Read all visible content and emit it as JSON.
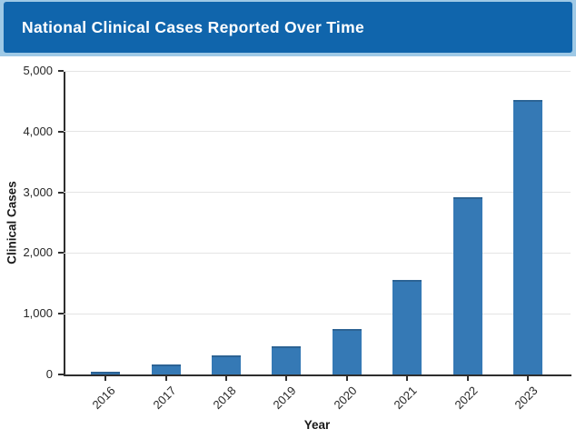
{
  "header": {
    "title": "National Clinical Cases Reported Over Time"
  },
  "colors": {
    "header_bg": "#1065ac",
    "header_border": "#9ec9e6",
    "bar": "#3579b5",
    "grid": "#e4e4e4",
    "spine": "#2e2e2e",
    "tick_text": "#262626"
  },
  "chart_data": {
    "type": "bar",
    "title": "National Clinical Cases Reported Over Time",
    "categories": [
      "2016",
      "2017",
      "2018",
      "2019",
      "2020",
      "2021",
      "2022",
      "2023"
    ],
    "values": [
      50,
      160,
      320,
      470,
      750,
      1550,
      2920,
      4520
    ],
    "xlabel": "Year",
    "ylabel": "Clinical Cases",
    "ylim": [
      0,
      5000
    ],
    "yticks": [
      0,
      1000,
      2000,
      3000,
      4000,
      5000
    ],
    "ytick_labels": [
      "0",
      "1,000",
      "2,000",
      "3,000",
      "4,000",
      "5,000"
    ],
    "grid": true,
    "legend": false,
    "xtick_rotation": 45
  }
}
